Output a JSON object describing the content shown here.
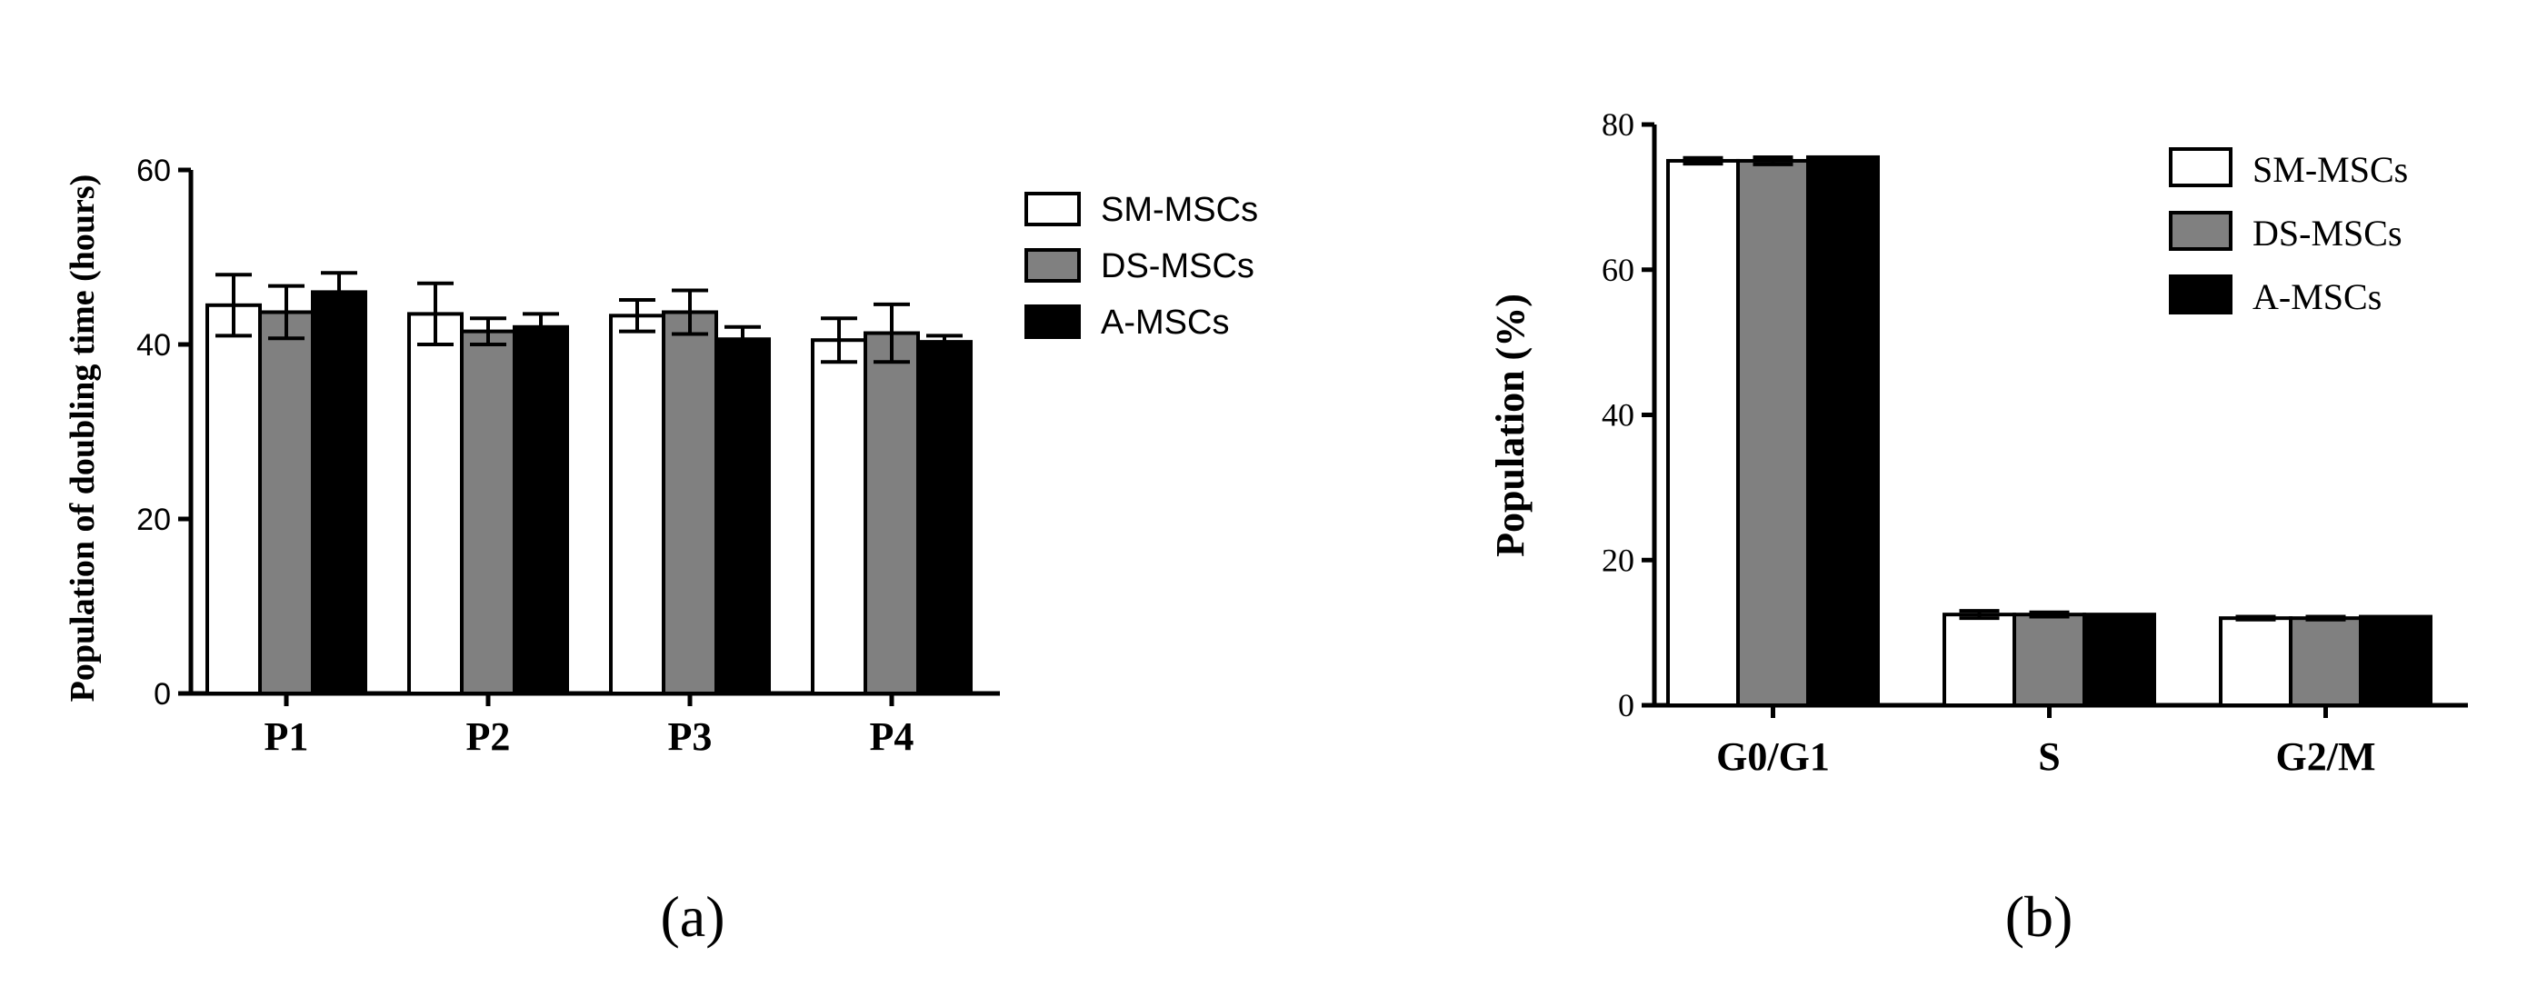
{
  "chart_data": [
    {
      "type": "bar",
      "panel_label": "(a)",
      "title": "",
      "xlabel": "",
      "ylabel": "Population of doubling time (hours)",
      "categories": [
        "P1",
        "P2",
        "P3",
        "P4"
      ],
      "ylim": [
        0,
        60
      ],
      "yticks": [
        "0",
        "20",
        "40",
        "60"
      ],
      "grid": false,
      "legend_position": "right",
      "error_bars": true,
      "series": [
        {
          "name": "SM-MSCs",
          "color": "#ffffff",
          "values": [
            44.5,
            43.5,
            43.3,
            40.5
          ],
          "errors": [
            3.5,
            3.5,
            1.8,
            2.5
          ]
        },
        {
          "name": "DS-MSCs",
          "color": "#808080",
          "values": [
            43.7,
            41.5,
            43.7,
            41.3
          ],
          "errors": [
            3.0,
            1.5,
            2.5,
            3.3
          ]
        },
        {
          "name": "A-MSCs",
          "color": "#000000",
          "values": [
            46.0,
            42.0,
            40.6,
            40.3
          ],
          "errors": [
            2.2,
            1.5,
            1.4,
            0.7
          ]
        }
      ]
    },
    {
      "type": "bar",
      "panel_label": "(b)",
      "title": "",
      "xlabel": "",
      "ylabel": "Population (%)",
      "categories": [
        "G0/G1",
        "S",
        "G2/M"
      ],
      "ylim": [
        0,
        80
      ],
      "yticks": [
        "0",
        "20",
        "40",
        "60",
        "80"
      ],
      "grid": false,
      "legend_position": "top-right",
      "error_bars": true,
      "series": [
        {
          "name": "SM-MSCs",
          "color": "#ffffff",
          "values": [
            75.0,
            12.5,
            12.0
          ],
          "errors": [
            0.4,
            0.5,
            0.2
          ]
        },
        {
          "name": "DS-MSCs",
          "color": "#808080",
          "values": [
            75.0,
            12.5,
            12.0
          ],
          "errors": [
            0.5,
            0.3,
            0.2
          ]
        },
        {
          "name": "A-MSCs",
          "color": "#000000",
          "values": [
            75.5,
            12.5,
            12.2
          ],
          "errors": [
            0.0,
            0.0,
            0.0
          ]
        }
      ]
    }
  ]
}
